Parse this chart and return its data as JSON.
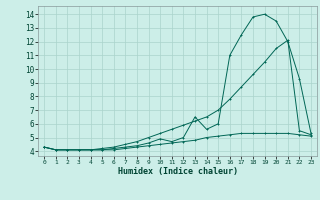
{
  "xlabel": "Humidex (Indice chaleur)",
  "bg_color": "#cceee8",
  "grid_color": "#aad4cc",
  "line_color": "#006655",
  "x_ticks": [
    0,
    1,
    2,
    3,
    4,
    5,
    6,
    7,
    8,
    9,
    10,
    11,
    12,
    13,
    14,
    15,
    16,
    17,
    18,
    19,
    20,
    21,
    22,
    23
  ],
  "x_tick_labels": [
    "0",
    "1",
    "2",
    "3",
    "4",
    "5",
    "6",
    "7",
    "8",
    "9",
    "10",
    "11",
    "12",
    "13",
    "14",
    "15",
    "16",
    "17",
    "18",
    "19",
    "20",
    "21",
    "22",
    "23"
  ],
  "y_ticks": [
    4,
    5,
    6,
    7,
    8,
    9,
    10,
    11,
    12,
    13,
    14
  ],
  "ylim": [
    3.65,
    14.6
  ],
  "xlim": [
    -0.5,
    23.5
  ],
  "series1_y": [
    4.3,
    4.1,
    4.1,
    4.1,
    4.1,
    4.1,
    4.1,
    4.2,
    4.3,
    4.4,
    4.5,
    4.6,
    4.7,
    4.8,
    5.0,
    5.1,
    5.2,
    5.3,
    5.3,
    5.3,
    5.3,
    5.3,
    5.2,
    5.1
  ],
  "series2_y": [
    4.3,
    4.1,
    4.1,
    4.1,
    4.1,
    4.1,
    4.2,
    4.3,
    4.4,
    4.6,
    4.9,
    4.7,
    5.0,
    6.5,
    5.6,
    6.0,
    11.0,
    12.5,
    13.8,
    14.0,
    13.5,
    12.0,
    9.3,
    5.3
  ],
  "series3_y": [
    4.3,
    4.1,
    4.1,
    4.1,
    4.1,
    4.2,
    4.3,
    4.5,
    4.7,
    5.0,
    5.3,
    5.6,
    5.9,
    6.2,
    6.5,
    7.0,
    7.8,
    8.7,
    9.6,
    10.5,
    11.5,
    12.1,
    5.5,
    5.2
  ]
}
